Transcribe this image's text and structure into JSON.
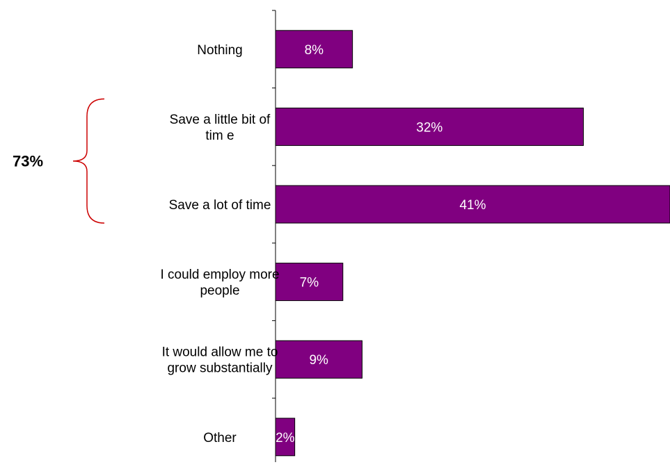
{
  "chart_data": {
    "type": "bar",
    "orientation": "horizontal",
    "categories": [
      [
        "Nothing"
      ],
      [
        "Save a little bit of",
        "tim e"
      ],
      [
        "Save a lot of time"
      ],
      [
        "I could employ more",
        "people"
      ],
      [
        "It would allow me to",
        "grow substantially"
      ],
      [
        "Other"
      ]
    ],
    "values": [
      8,
      32,
      41,
      7,
      9,
      2
    ],
    "value_labels": [
      "8%",
      "32%",
      "41%",
      "7%",
      "9%",
      "2%"
    ],
    "xlim": [
      0,
      41
    ],
    "bar_color": "#800080",
    "annotation": {
      "label": "73%",
      "spans_categories": [
        1,
        2
      ],
      "bracket_color": "#cc0000"
    }
  }
}
